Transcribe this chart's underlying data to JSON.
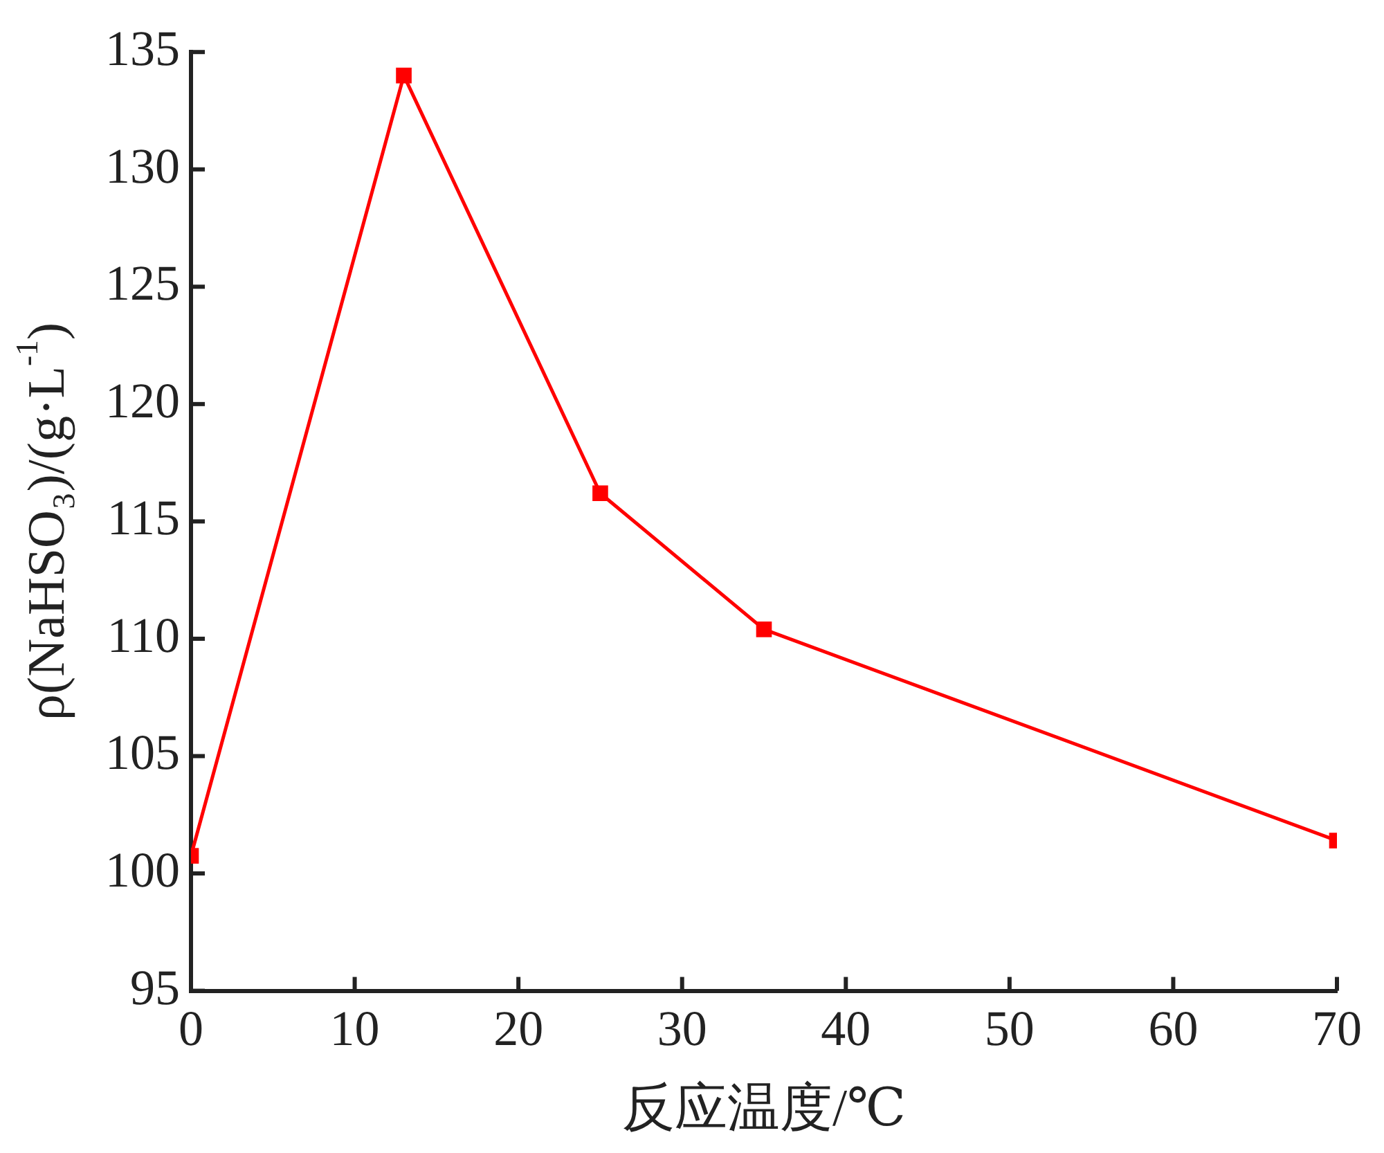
{
  "chart_data": {
    "type": "line",
    "xlabel": "反应温度/℃",
    "ylabel": "ρ(NaHSO₃)/(g·L$^{-1}$)",
    "x": [
      0,
      13,
      25,
      35,
      70
    ],
    "series": [
      {
        "color": "#ff0000",
        "values": [
          100.75,
          134.0,
          116.2,
          110.4,
          101.4
        ]
      }
    ],
    "xlim": [
      0,
      70
    ],
    "xticks": [
      0,
      10,
      20,
      30,
      40,
      50,
      60,
      70
    ],
    "ylim": [
      95,
      135
    ],
    "yticks": [
      95,
      100,
      105,
      110,
      115,
      120,
      125,
      130,
      135
    ],
    "marker": "square",
    "line_style": "solid",
    "legend": false
  }
}
